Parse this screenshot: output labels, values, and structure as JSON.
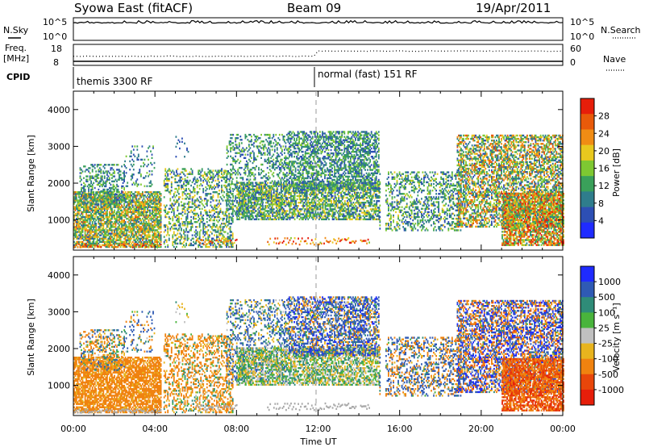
{
  "header": {
    "station": "Syowa East (fitACF)",
    "beam": "Beam 09",
    "date": "19/Apr/2011"
  },
  "noise_panel": {
    "left_label": "N.Sky",
    "left_ticks": [
      "10^5",
      "10^0"
    ],
    "right_label": "N.Search",
    "right_ticks": [
      "10^5",
      "10^0"
    ]
  },
  "freq_panel": {
    "left_label_1": "Freq.",
    "left_label_2": "[MHz]",
    "left_ticks": [
      "18",
      "8"
    ],
    "right_label": "Nave",
    "right_ticks": [
      "60",
      "0"
    ]
  },
  "cpid_panel": {
    "label": "CPID",
    "modes": [
      {
        "name": "themis 3300 RF",
        "start_hour": 0
      },
      {
        "name": "normal (fast) 151 RF",
        "start_hour": 12
      }
    ]
  },
  "colors": {
    "power_scale": [
      "#1f2bff",
      "#2d4fb4",
      "#2f7d8c",
      "#3aa05a",
      "#7ec832",
      "#e8c81e",
      "#f08c14",
      "#e85a0a",
      "#e61e0a"
    ],
    "velocity_scale": [
      "#1f2bff",
      "#2f5ab4",
      "#2f8c78",
      "#49b43c",
      "#c0c0c0",
      "#e8b41e",
      "#f0820f",
      "#e8460a",
      "#e61e0a"
    ],
    "ground_scatter": "#a8a8a8"
  },
  "chart_data": [
    {
      "type": "heatmap",
      "panel": "power",
      "xlabel": "Time UT",
      "ylabel": "Slant Range [km]",
      "x_range_hours": [
        0,
        24
      ],
      "x_ticks": [
        "00:00",
        "04:00",
        "08:00",
        "12:00",
        "16:00",
        "20:00",
        "00:00"
      ],
      "ylim": [
        180,
        4500
      ],
      "y_ticks": [
        1000,
        2000,
        3000,
        4000
      ],
      "colorbar_label": "Power [dB]",
      "colorbar_ticks": [
        "28",
        "24",
        "20",
        "16",
        "12",
        "8",
        "4"
      ],
      "colorbar_range": [
        0,
        30
      ]
    },
    {
      "type": "heatmap",
      "panel": "velocity",
      "xlabel": "Time UT",
      "ylabel": "Slant Range [km]",
      "x_range_hours": [
        0,
        24
      ],
      "x_ticks": [
        "00:00",
        "04:00",
        "08:00",
        "12:00",
        "16:00",
        "20:00",
        "00:00"
      ],
      "ylim": [
        180,
        4500
      ],
      "y_ticks": [
        1000,
        2000,
        3000,
        4000
      ],
      "colorbar_label": "Velocity [m s⁻¹]",
      "colorbar_ticks": [
        "1000",
        "500",
        "100",
        "25",
        "-25",
        "-100",
        "-500",
        "-1000"
      ],
      "colorbar_range": [
        -1000,
        1000
      ]
    }
  ],
  "scatter_regions": [
    {
      "t0": 0.0,
      "t1": 4.3,
      "r0": 250,
      "r1": 1750,
      "d": 0.75,
      "pw": [
        6,
        24
      ],
      "vel": [
        -500,
        -25
      ]
    },
    {
      "t0": 0.3,
      "t1": 2.5,
      "r0": 1400,
      "r1": 2500,
      "d": 0.35,
      "pw": [
        4,
        16
      ],
      "vel": [
        -300,
        200
      ]
    },
    {
      "t0": 2.5,
      "t1": 4.0,
      "r0": 1900,
      "r1": 3000,
      "d": 0.15,
      "pw": [
        4,
        14
      ],
      "vel": [
        -200,
        300
      ]
    },
    {
      "t0": 4.3,
      "t1": 7.8,
      "r0": 250,
      "r1": 2400,
      "d": 0.35,
      "pw": [
        4,
        20
      ],
      "vel": [
        -400,
        100
      ]
    },
    {
      "t0": 5.0,
      "t1": 5.6,
      "r0": 2700,
      "r1": 3300,
      "d": 0.12,
      "pw": [
        4,
        10
      ],
      "vel": [
        -50,
        50
      ]
    },
    {
      "t0": 7.5,
      "t1": 10.5,
      "r0": 1000,
      "r1": 3300,
      "d": 0.3,
      "pw": [
        4,
        16
      ],
      "vel": [
        -100,
        300
      ]
    },
    {
      "t0": 8.0,
      "t1": 15.0,
      "r0": 1000,
      "r1": 2000,
      "d": 0.6,
      "pw": [
        4,
        20
      ],
      "vel": [
        -50,
        50
      ]
    },
    {
      "t0": 10.5,
      "t1": 15.0,
      "r0": 1800,
      "r1": 3400,
      "d": 0.55,
      "pw": [
        4,
        16
      ],
      "vel": [
        -200,
        600
      ]
    },
    {
      "t0": 15.0,
      "t1": 19.0,
      "r0": 700,
      "r1": 2300,
      "d": 0.35,
      "pw": [
        4,
        18
      ],
      "vel": [
        -400,
        500
      ]
    },
    {
      "t0": 18.8,
      "t1": 24.0,
      "r0": 800,
      "r1": 3300,
      "d": 0.55,
      "pw": [
        4,
        26
      ],
      "vel": [
        -600,
        800
      ]
    },
    {
      "t0": 21.0,
      "t1": 24.0,
      "r0": 300,
      "r1": 1700,
      "d": 0.75,
      "pw": [
        8,
        30
      ],
      "vel": [
        -1000,
        -100
      ]
    }
  ],
  "ground_bands": [
    {
      "t0": 0.0,
      "t1": 4.3,
      "r": 280,
      "w": 100
    },
    {
      "t0": 6.0,
      "t1": 8.0,
      "r": 380,
      "w": 140
    },
    {
      "t0": 9.5,
      "t1": 14.5,
      "r": 400,
      "w": 180
    }
  ],
  "data_gap_hours": [
    [
      4.3,
      4.4
    ],
    [
      15.05,
      15.3
    ]
  ],
  "noise_level": 0.78,
  "nave_before_noon": 0.2,
  "nave_after_noon": 0.45
}
